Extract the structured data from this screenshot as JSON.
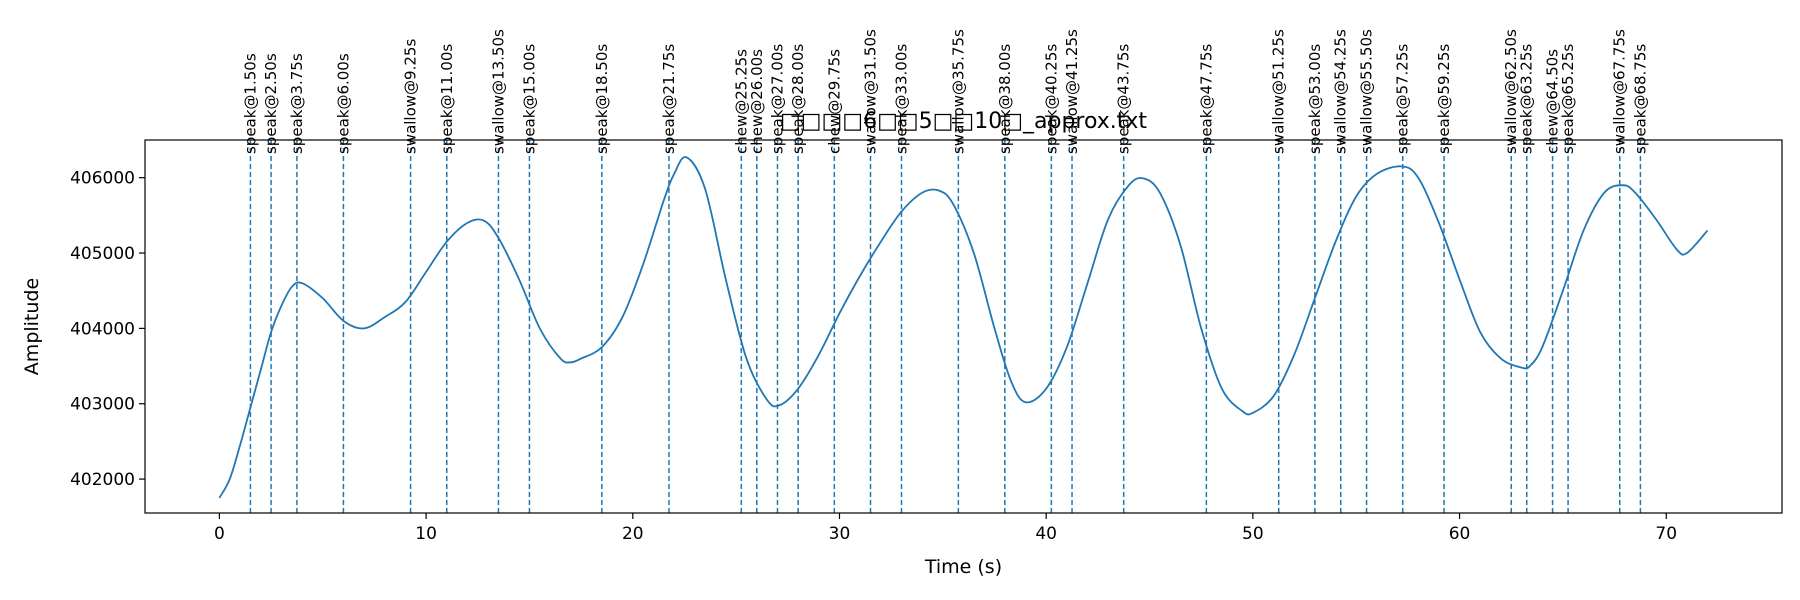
{
  "chart_data": {
    "type": "line",
    "title": "□□□□6□□5□□10□_approx.txt",
    "xlabel": "Time (s)",
    "ylabel": "Amplitude",
    "xlim": [
      -3.6,
      75.6
    ],
    "ylim": [
      401550,
      406500
    ],
    "xticks": [
      0,
      10,
      20,
      30,
      40,
      50,
      60,
      70
    ],
    "yticks": [
      402000,
      403000,
      404000,
      405000,
      406000
    ],
    "grid": false,
    "legend": "none",
    "line_color": "#1f77b4",
    "event_color": "#1f77b4",
    "series": [
      {
        "x": [
          0,
          0.5,
          1,
          1.5,
          2,
          2.5,
          3,
          3.5,
          4,
          5,
          6,
          7,
          8,
          9,
          10,
          11,
          12,
          12.8,
          13.5,
          14.5,
          15.5,
          16.5,
          17,
          17.5,
          18.5,
          19.5,
          20.5,
          21.5,
          22,
          22.6,
          23.5,
          24.5,
          25.5,
          26.5,
          27.1,
          28,
          29,
          30,
          31,
          32,
          33,
          34,
          34.8,
          35.5,
          36.5,
          37.5,
          38.3,
          39,
          40,
          41,
          42,
          43,
          44,
          44.7,
          45.5,
          46.5,
          47.5,
          48.5,
          49.5,
          50,
          51,
          52,
          53,
          54,
          55,
          56,
          57.2,
          58,
          59,
          60,
          61,
          62,
          63,
          63.4,
          64,
          65,
          66,
          67,
          67.9,
          68.5,
          69.5,
          70.5,
          71,
          72
        ],
        "y": [
          401750,
          402000,
          402450,
          402950,
          403450,
          403950,
          404300,
          404550,
          404600,
          404400,
          404100,
          404000,
          404150,
          404350,
          404750,
          405150,
          405400,
          405430,
          405200,
          404650,
          404000,
          403600,
          403550,
          403600,
          403750,
          404150,
          404850,
          405700,
          406050,
          406270,
          405850,
          404650,
          403600,
          403050,
          402980,
          403200,
          403650,
          404200,
          404700,
          405150,
          405550,
          405800,
          405830,
          405650,
          405000,
          404000,
          403300,
          403020,
          403200,
          403750,
          404600,
          405450,
          405900,
          405990,
          405800,
          405100,
          404000,
          403200,
          402900,
          402880,
          403100,
          403650,
          404400,
          405150,
          405750,
          406050,
          406150,
          406000,
          405400,
          404650,
          403950,
          403600,
          403480,
          403500,
          403750,
          404500,
          405300,
          405800,
          405900,
          405800,
          405450,
          405050,
          405000,
          405300
        ]
      }
    ],
    "events": [
      {
        "x": 1.5,
        "label": "speak@1.50s"
      },
      {
        "x": 2.5,
        "label": "speak@2.50s"
      },
      {
        "x": 3.75,
        "label": "speak@3.75s"
      },
      {
        "x": 6.0,
        "label": "speak@6.00s"
      },
      {
        "x": 9.25,
        "label": "swallow@9.25s"
      },
      {
        "x": 11.0,
        "label": "speak@11.00s"
      },
      {
        "x": 13.5,
        "label": "swallow@13.50s"
      },
      {
        "x": 15.0,
        "label": "speak@15.00s"
      },
      {
        "x": 18.5,
        "label": "speak@18.50s"
      },
      {
        "x": 21.75,
        "label": "speak@21.75s"
      },
      {
        "x": 25.25,
        "label": "chew@25.25s"
      },
      {
        "x": 26.0,
        "label": "chew@26.00s"
      },
      {
        "x": 27.0,
        "label": "speak@27.00s"
      },
      {
        "x": 28.0,
        "label": "speak@28.00s"
      },
      {
        "x": 29.75,
        "label": "chew@29.75s"
      },
      {
        "x": 31.5,
        "label": "swallow@31.50s"
      },
      {
        "x": 33.0,
        "label": "speak@33.00s"
      },
      {
        "x": 35.75,
        "label": "swallow@35.75s"
      },
      {
        "x": 38.0,
        "label": "speak@38.00s"
      },
      {
        "x": 40.25,
        "label": "speak@40.25s"
      },
      {
        "x": 41.25,
        "label": "swallow@41.25s"
      },
      {
        "x": 43.75,
        "label": "speak@43.75s"
      },
      {
        "x": 47.75,
        "label": "speak@47.75s"
      },
      {
        "x": 51.25,
        "label": "swallow@51.25s"
      },
      {
        "x": 53.0,
        "label": "speak@53.00s"
      },
      {
        "x": 54.25,
        "label": "swallow@54.25s"
      },
      {
        "x": 55.5,
        "label": "swallow@55.50s"
      },
      {
        "x": 57.25,
        "label": "speak@57.25s"
      },
      {
        "x": 59.25,
        "label": "speak@59.25s"
      },
      {
        "x": 62.5,
        "label": "swallow@62.50s"
      },
      {
        "x": 63.25,
        "label": "speak@63.25s"
      },
      {
        "x": 64.5,
        "label": "chew@64.50s"
      },
      {
        "x": 65.25,
        "label": "speak@65.25s"
      },
      {
        "x": 67.75,
        "label": "swallow@67.75s"
      },
      {
        "x": 68.75,
        "label": "speak@68.75s"
      }
    ]
  }
}
